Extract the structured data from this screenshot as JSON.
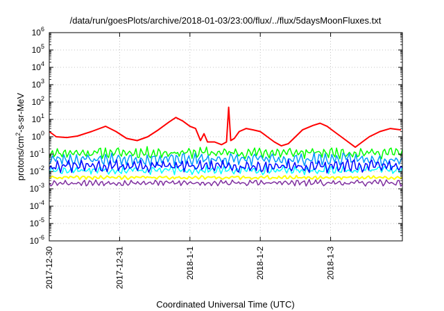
{
  "chart_data": {
    "type": "line",
    "title": "/data/run/goesPlots/archive/2018-01-03/23:00/flux/../flux/5daysMoonFluxes.txt",
    "xlabel": "Coordinated Universal Time (UTC)",
    "ylabel": {
      "base": "protons/cm",
      "sup": "2",
      "rest": "-s-sr-MeV"
    },
    "yscale": "log",
    "ylim_exp": [
      -6,
      6
    ],
    "y_ticks": [
      {
        "base": "10",
        "exp": "-6"
      },
      {
        "base": "10",
        "exp": "-5"
      },
      {
        "base": "10",
        "exp": "-4"
      },
      {
        "base": "10",
        "exp": "-3"
      },
      {
        "base": "10",
        "exp": "-2"
      },
      {
        "base": "10",
        "exp": "-1"
      },
      {
        "base": "10",
        "exp": "0"
      },
      {
        "base": "10",
        "exp": "1"
      },
      {
        "base": "10",
        "exp": "2"
      },
      {
        "base": "10",
        "exp": "3"
      },
      {
        "base": "10",
        "exp": "4"
      },
      {
        "base": "10",
        "exp": "5"
      },
      {
        "base": "10",
        "exp": "6"
      }
    ],
    "xlim_days": [
      0,
      5.02
    ],
    "x_ticks": [
      {
        "label": "2017-12-30",
        "day": 0
      },
      {
        "label": "2017-12-31",
        "day": 1
      },
      {
        "label": "2018-1-1",
        "day": 2
      },
      {
        "label": "2018-1-2",
        "day": 3
      },
      {
        "label": "2018-1-3",
        "day": 4
      }
    ],
    "grid": true,
    "series": [
      {
        "color": "#ff0000",
        "width": 2,
        "points": [
          [
            0,
            2
          ],
          [
            0.1,
            1.0
          ],
          [
            0.25,
            0.9
          ],
          [
            0.4,
            1.1
          ],
          [
            0.6,
            2.0
          ],
          [
            0.8,
            4.0
          ],
          [
            0.95,
            2.0
          ],
          [
            1.1,
            0.8
          ],
          [
            1.25,
            0.6
          ],
          [
            1.4,
            1.0
          ],
          [
            1.55,
            2.5
          ],
          [
            1.7,
            7
          ],
          [
            1.8,
            13
          ],
          [
            1.9,
            8
          ],
          [
            2.0,
            4
          ],
          [
            2.08,
            3
          ],
          [
            2.15,
            0.6
          ],
          [
            2.2,
            1.5
          ],
          [
            2.25,
            0.5
          ],
          [
            2.35,
            0.5
          ],
          [
            2.45,
            0.35
          ],
          [
            2.52,
            0.5
          ],
          [
            2.55,
            50
          ],
          [
            2.58,
            0.6
          ],
          [
            2.63,
            0.8
          ],
          [
            2.7,
            2.0
          ],
          [
            2.8,
            3.0
          ],
          [
            2.9,
            2.5
          ],
          [
            3.0,
            2.0
          ],
          [
            3.1,
            1.0
          ],
          [
            3.2,
            0.5
          ],
          [
            3.3,
            0.3
          ],
          [
            3.4,
            0.4
          ],
          [
            3.5,
            1.0
          ],
          [
            3.6,
            2.5
          ],
          [
            3.75,
            4.5
          ],
          [
            3.85,
            6.0
          ],
          [
            3.95,
            4.0
          ],
          [
            4.05,
            2.0
          ],
          [
            4.15,
            1.0
          ],
          [
            4.25,
            0.5
          ],
          [
            4.35,
            0.25
          ],
          [
            4.45,
            0.5
          ],
          [
            4.55,
            1.0
          ],
          [
            4.7,
            2.0
          ],
          [
            4.85,
            3.0
          ],
          [
            5.0,
            2.5
          ]
        ]
      },
      {
        "color": "#00ff00",
        "width": 1.5,
        "base": 0.12,
        "spread": 0.45,
        "seed": 11
      },
      {
        "color": "#00ffff",
        "width": 1.5,
        "base": 0.012,
        "spread": 0.35,
        "seed": 17
      },
      {
        "color": "#0099ff",
        "width": 1.5,
        "base": 0.05,
        "spread": 0.5,
        "seed": 23
      },
      {
        "color": "#0000ff",
        "width": 1.5,
        "base": 0.02,
        "spread": 0.5,
        "seed": 31
      },
      {
        "color": "#ffff00",
        "width": 2,
        "base": 0.0045,
        "spread": 0.15,
        "seed": 41
      },
      {
        "color": "#7f2f9f",
        "width": 1.5,
        "base": 0.0022,
        "spread": 0.25,
        "seed": 53
      }
    ]
  }
}
